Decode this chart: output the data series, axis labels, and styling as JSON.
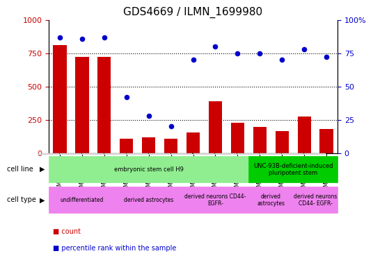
{
  "title": "GDS4669 / ILMN_1699980",
  "samples": [
    "GSM997555",
    "GSM997556",
    "GSM997557",
    "GSM997563",
    "GSM997564",
    "GSM997565",
    "GSM997566",
    "GSM997567",
    "GSM997568",
    "GSM997571",
    "GSM997572",
    "GSM997569",
    "GSM997570"
  ],
  "counts": [
    810,
    720,
    720,
    110,
    120,
    110,
    155,
    390,
    230,
    195,
    165,
    275,
    180
  ],
  "percentiles": [
    87,
    86,
    87,
    42,
    28,
    20,
    70,
    80,
    75,
    75,
    70,
    78,
    72
  ],
  "bar_color": "#cc0000",
  "dot_color": "#0000cc",
  "grid_color": "#000000",
  "ylim_left": [
    0,
    1000
  ],
  "ylim_right": [
    0,
    100
  ],
  "yticks_left": [
    0,
    250,
    500,
    750,
    1000
  ],
  "yticks_right": [
    0,
    25,
    50,
    75,
    100
  ],
  "cell_line_groups": [
    {
      "label": "embryonic stem cell H9",
      "start": 0,
      "end": 9,
      "color": "#90ee90"
    },
    {
      "label": "UNC-93B-deficient-induced\npluripotent stem",
      "start": 9,
      "end": 13,
      "color": "#00cc00"
    }
  ],
  "cell_type_groups": [
    {
      "label": "undifferentiated",
      "start": 0,
      "end": 3,
      "color": "#ee82ee"
    },
    {
      "label": "derived astrocytes",
      "start": 3,
      "end": 6,
      "color": "#ee82ee"
    },
    {
      "label": "derived neurons CD44-\nEGFR-",
      "start": 6,
      "end": 9,
      "color": "#ee82ee"
    },
    {
      "label": "derived\nastrocytes",
      "start": 9,
      "end": 11,
      "color": "#ee82ee"
    },
    {
      "label": "derived neurons\nCD44- EGFR-",
      "start": 11,
      "end": 13,
      "color": "#ee82ee"
    }
  ],
  "legend_count_color": "#cc0000",
  "legend_dot_color": "#0000cc",
  "tick_label_color": "#cc0000",
  "right_tick_color": "#0000cc"
}
